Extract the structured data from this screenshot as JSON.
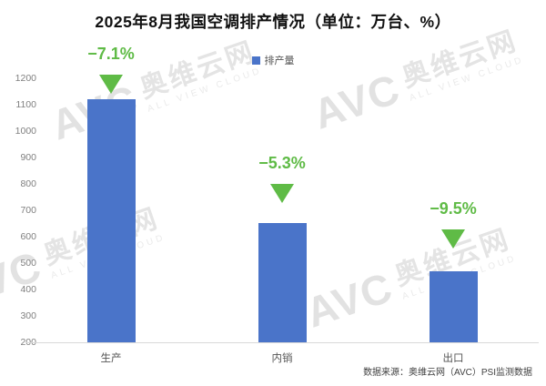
{
  "title": "2025年8月我国空调排产情况（单位：万台、%）",
  "legend": {
    "label": "排产量"
  },
  "chart_data": {
    "type": "bar",
    "title": "2025年8月我国空调排产情况（单位：万台、%）",
    "series_name": "排产量",
    "categories": [
      "生产",
      "内销",
      "出口"
    ],
    "category_keys": [
      "production",
      "domestic-sales",
      "export"
    ],
    "values": [
      1122,
      652,
      470
    ],
    "annotations": [
      "−7.1%",
      "−5.3%",
      "−9.5%"
    ],
    "yticks": [
      1200,
      1100,
      1000,
      900,
      800,
      700,
      600,
      500,
      400,
      300,
      200
    ],
    "ylim": [
      200,
      1200
    ],
    "xlabel": "",
    "ylabel": "",
    "grid": false,
    "legend_position": "top",
    "bar_color": "#4A74C9",
    "annotation_color": "#5FBB46"
  },
  "source": "数据来源：奥维云网（AVC）PSI监测数据",
  "watermark": {
    "logo": "AVC",
    "cn": "奥维云网",
    "en": "ALL VIEW CLOUD"
  }
}
